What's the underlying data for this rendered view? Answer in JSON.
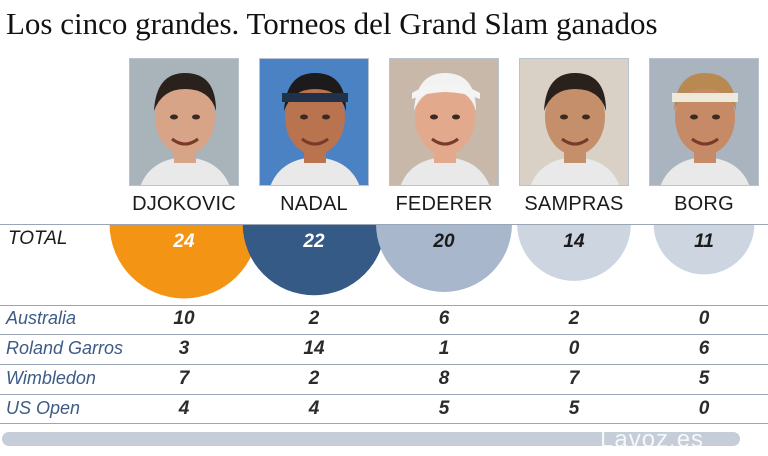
{
  "title": "Los cinco grandes. Torneos del Grand Slam ganados",
  "players": [
    {
      "name": "DJOKOVIC",
      "total": "24",
      "color": "#f39415",
      "text_color": "#ffffff",
      "skin": "#d7a488",
      "hair": "#2a211c",
      "bg": "#a9b3ba"
    },
    {
      "name": "NADAL",
      "total": "22",
      "color": "#355a85",
      "text_color": "#ffffff",
      "skin": "#b9734e",
      "hair": "#1c1a1a",
      "bg": "#4a82c4"
    },
    {
      "name": "FEDERER",
      "total": "20",
      "color": "#a8b7cc",
      "text_color": "#1b1b1b",
      "skin": "#e2a98d",
      "hair": "#f2f2f2",
      "bg": "#c7b8a9"
    },
    {
      "name": "SAMPRAS",
      "total": "14",
      "color": "#cdd5e1",
      "text_color": "#1b1b1b",
      "skin": "#c58f6b",
      "hair": "#2a211c",
      "bg": "#d9d0c6"
    },
    {
      "name": "BORG",
      "total": "11",
      "color": "#cdd5e1",
      "text_color": "#1b1b1b",
      "skin": "#c78a66",
      "hair": "#b88a52",
      "bg": "#aab4bf"
    }
  ],
  "total_label": "TOTAL",
  "rows": [
    {
      "label": "Australia",
      "values": [
        "10",
        "2",
        "6",
        "2",
        "0"
      ]
    },
    {
      "label": "Roland Garros",
      "values": [
        "3",
        "14",
        "1",
        "0",
        "6"
      ]
    },
    {
      "label": "Wimbledon",
      "values": [
        "7",
        "2",
        "8",
        "7",
        "5"
      ]
    },
    {
      "label": "US Open",
      "values": [
        "4",
        "4",
        "5",
        "5",
        "0"
      ]
    }
  ],
  "watermark": "Lavoz.es",
  "chart_data": {
    "type": "table",
    "title": "Los cinco grandes. Torneos del Grand Slam ganados",
    "categories": [
      "DJOKOVIC",
      "NADAL",
      "FEDERER",
      "SAMPRAS",
      "BORG"
    ],
    "totals": [
      24,
      22,
      20,
      14,
      11
    ],
    "series": [
      {
        "name": "Australia",
        "values": [
          10,
          2,
          6,
          2,
          0
        ]
      },
      {
        "name": "Roland Garros",
        "values": [
          3,
          14,
          1,
          0,
          6
        ]
      },
      {
        "name": "Wimbledon",
        "values": [
          7,
          2,
          8,
          7,
          5
        ]
      },
      {
        "name": "US Open",
        "values": [
          4,
          4,
          5,
          5,
          0
        ]
      }
    ]
  }
}
